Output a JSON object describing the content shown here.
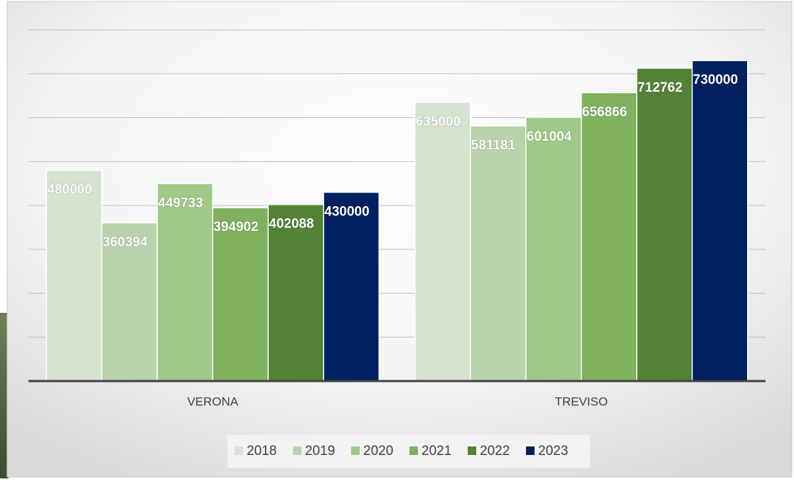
{
  "chart_data": {
    "type": "bar",
    "categories": [
      "VERONA",
      "TREVISO"
    ],
    "series": [
      {
        "name": "2018",
        "color": "#d4e4cf",
        "values": [
          480000,
          635000
        ]
      },
      {
        "name": "2019",
        "color": "#b9d4ad",
        "values": [
          360394,
          581181
        ]
      },
      {
        "name": "2020",
        "color": "#9fc889",
        "values": [
          449733,
          601004
        ]
      },
      {
        "name": "2021",
        "color": "#80b15c",
        "values": [
          394902,
          656866
        ]
      },
      {
        "name": "2022",
        "color": "#548235",
        "values": [
          402088,
          712762
        ]
      },
      {
        "name": "2023",
        "color": "#002060",
        "values": [
          430000,
          730000
        ]
      }
    ],
    "ylim": [
      0,
      800000
    ],
    "yticks": [
      0,
      100000,
      200000,
      300000,
      400000,
      500000,
      600000,
      700000,
      800000
    ],
    "grid": true,
    "legend": "bottom"
  }
}
